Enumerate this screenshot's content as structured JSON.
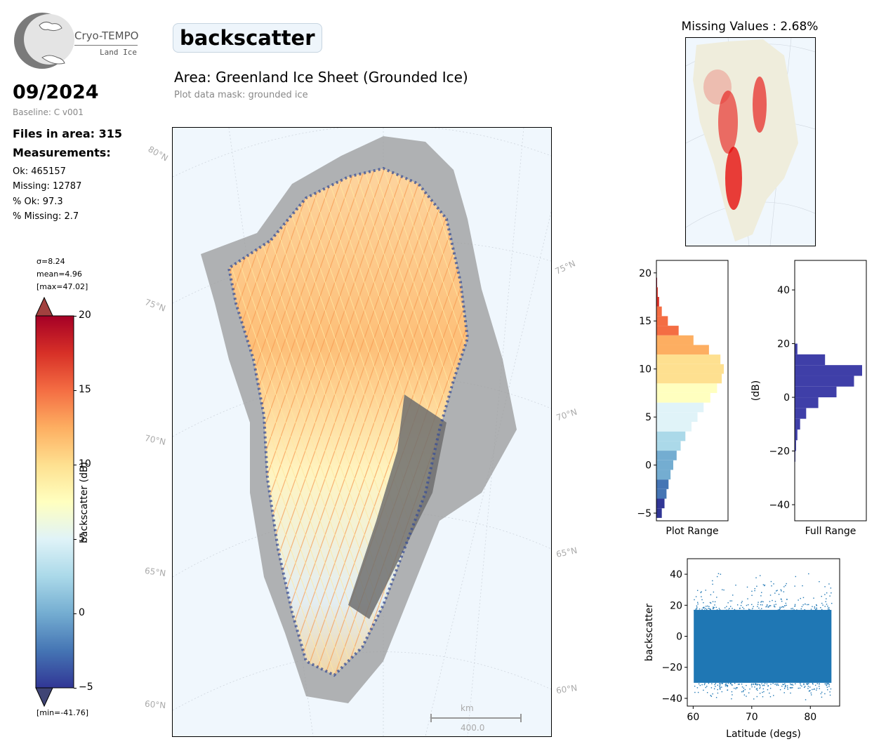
{
  "logo": {
    "name": "Cryo-TEMPO",
    "sub": "Land Ice"
  },
  "header": {
    "variable": "backscatter",
    "area_title": "Area: Greenland Ice Sheet (Grounded Ice)",
    "mask_note": "Plot data mask: grounded ice"
  },
  "summary": {
    "date": "09/2024",
    "baseline": "Baseline: C v001",
    "files": "Files in area: 315",
    "measurements_heading": "Measurements:",
    "ok": "Ok: 465157",
    "missing": "Missing: 12787",
    "pct_ok": "% Ok: 97.3",
    "pct_missing": "% Missing: 2.7"
  },
  "colorbar": {
    "sigma": "σ=8.24",
    "mean": "mean=4.96",
    "max": "[max=47.02]",
    "min": "[min=-41.76]",
    "label": "backscatter (dB)",
    "ticks": [
      "20",
      "15",
      "10",
      "5",
      "0",
      "−5"
    ],
    "colors": [
      "#a50026",
      "#d73027",
      "#f46d43",
      "#fdae61",
      "#fee090",
      "#ffffbf",
      "#e0f3f8",
      "#abd9e9",
      "#74add1",
      "#4575b4",
      "#313695"
    ]
  },
  "map": {
    "lat_labels_left": [
      "80°N",
      "75°N",
      "70°N",
      "65°N",
      "60°N"
    ],
    "lat_labels_right": [
      "75°N",
      "70°N",
      "65°N",
      "60°N"
    ],
    "scale_unit": "km",
    "scale_value": "400.0",
    "ocean_color": "#f0f7fd"
  },
  "missing_panel": {
    "title": "Missing Values : 2.68%"
  },
  "chart_data": [
    {
      "type": "bar",
      "name": "plot-range-histogram",
      "xlabel": "Plot Range",
      "ylim": [
        -5.8,
        21.3
      ],
      "yticks": [
        "20",
        "15",
        "10",
        "5",
        "0",
        "−5"
      ],
      "y": [
        -5,
        -4,
        -3,
        -2,
        -1,
        0,
        1,
        2,
        3,
        4,
        5,
        6,
        7,
        8,
        9,
        10,
        11,
        12,
        13,
        14,
        15,
        16,
        17,
        18,
        19,
        20
      ],
      "values": [
        0.08,
        0.12,
        0.15,
        0.18,
        0.21,
        0.25,
        0.3,
        0.36,
        0.43,
        0.52,
        0.61,
        0.7,
        0.8,
        0.9,
        0.97,
        1.0,
        0.95,
        0.78,
        0.55,
        0.33,
        0.17,
        0.08,
        0.04,
        0.02,
        0.01,
        0.005
      ]
    },
    {
      "type": "bar",
      "name": "full-range-histogram",
      "xlabel": "Full Range",
      "ylabel": "(dB)",
      "ylim": [
        -46,
        51
      ],
      "yticks": [
        "40",
        "20",
        "0",
        "−20",
        "−40"
      ],
      "y": [
        -26,
        -22,
        -18,
        -14,
        -10,
        -6,
        -2,
        2,
        6,
        10,
        14,
        18
      ],
      "values": [
        0.005,
        0.01,
        0.02,
        0.04,
        0.08,
        0.17,
        0.35,
        0.62,
        0.88,
        1.0,
        0.45,
        0.04
      ],
      "color": "#3f3fa8"
    },
    {
      "type": "scatter",
      "name": "latitude-scatter",
      "xlabel": "Latitude (degs)",
      "ylabel": "backscatter",
      "xlim": [
        59,
        85
      ],
      "ylim": [
        -45,
        50
      ],
      "xticks": [
        "60",
        "70",
        "80"
      ],
      "yticks": [
        "40",
        "20",
        "0",
        "−20",
        "−40"
      ],
      "x_range": [
        60.1,
        83.6
      ],
      "band_y": [
        -30,
        17
      ],
      "color": "#1f77b4"
    }
  ]
}
